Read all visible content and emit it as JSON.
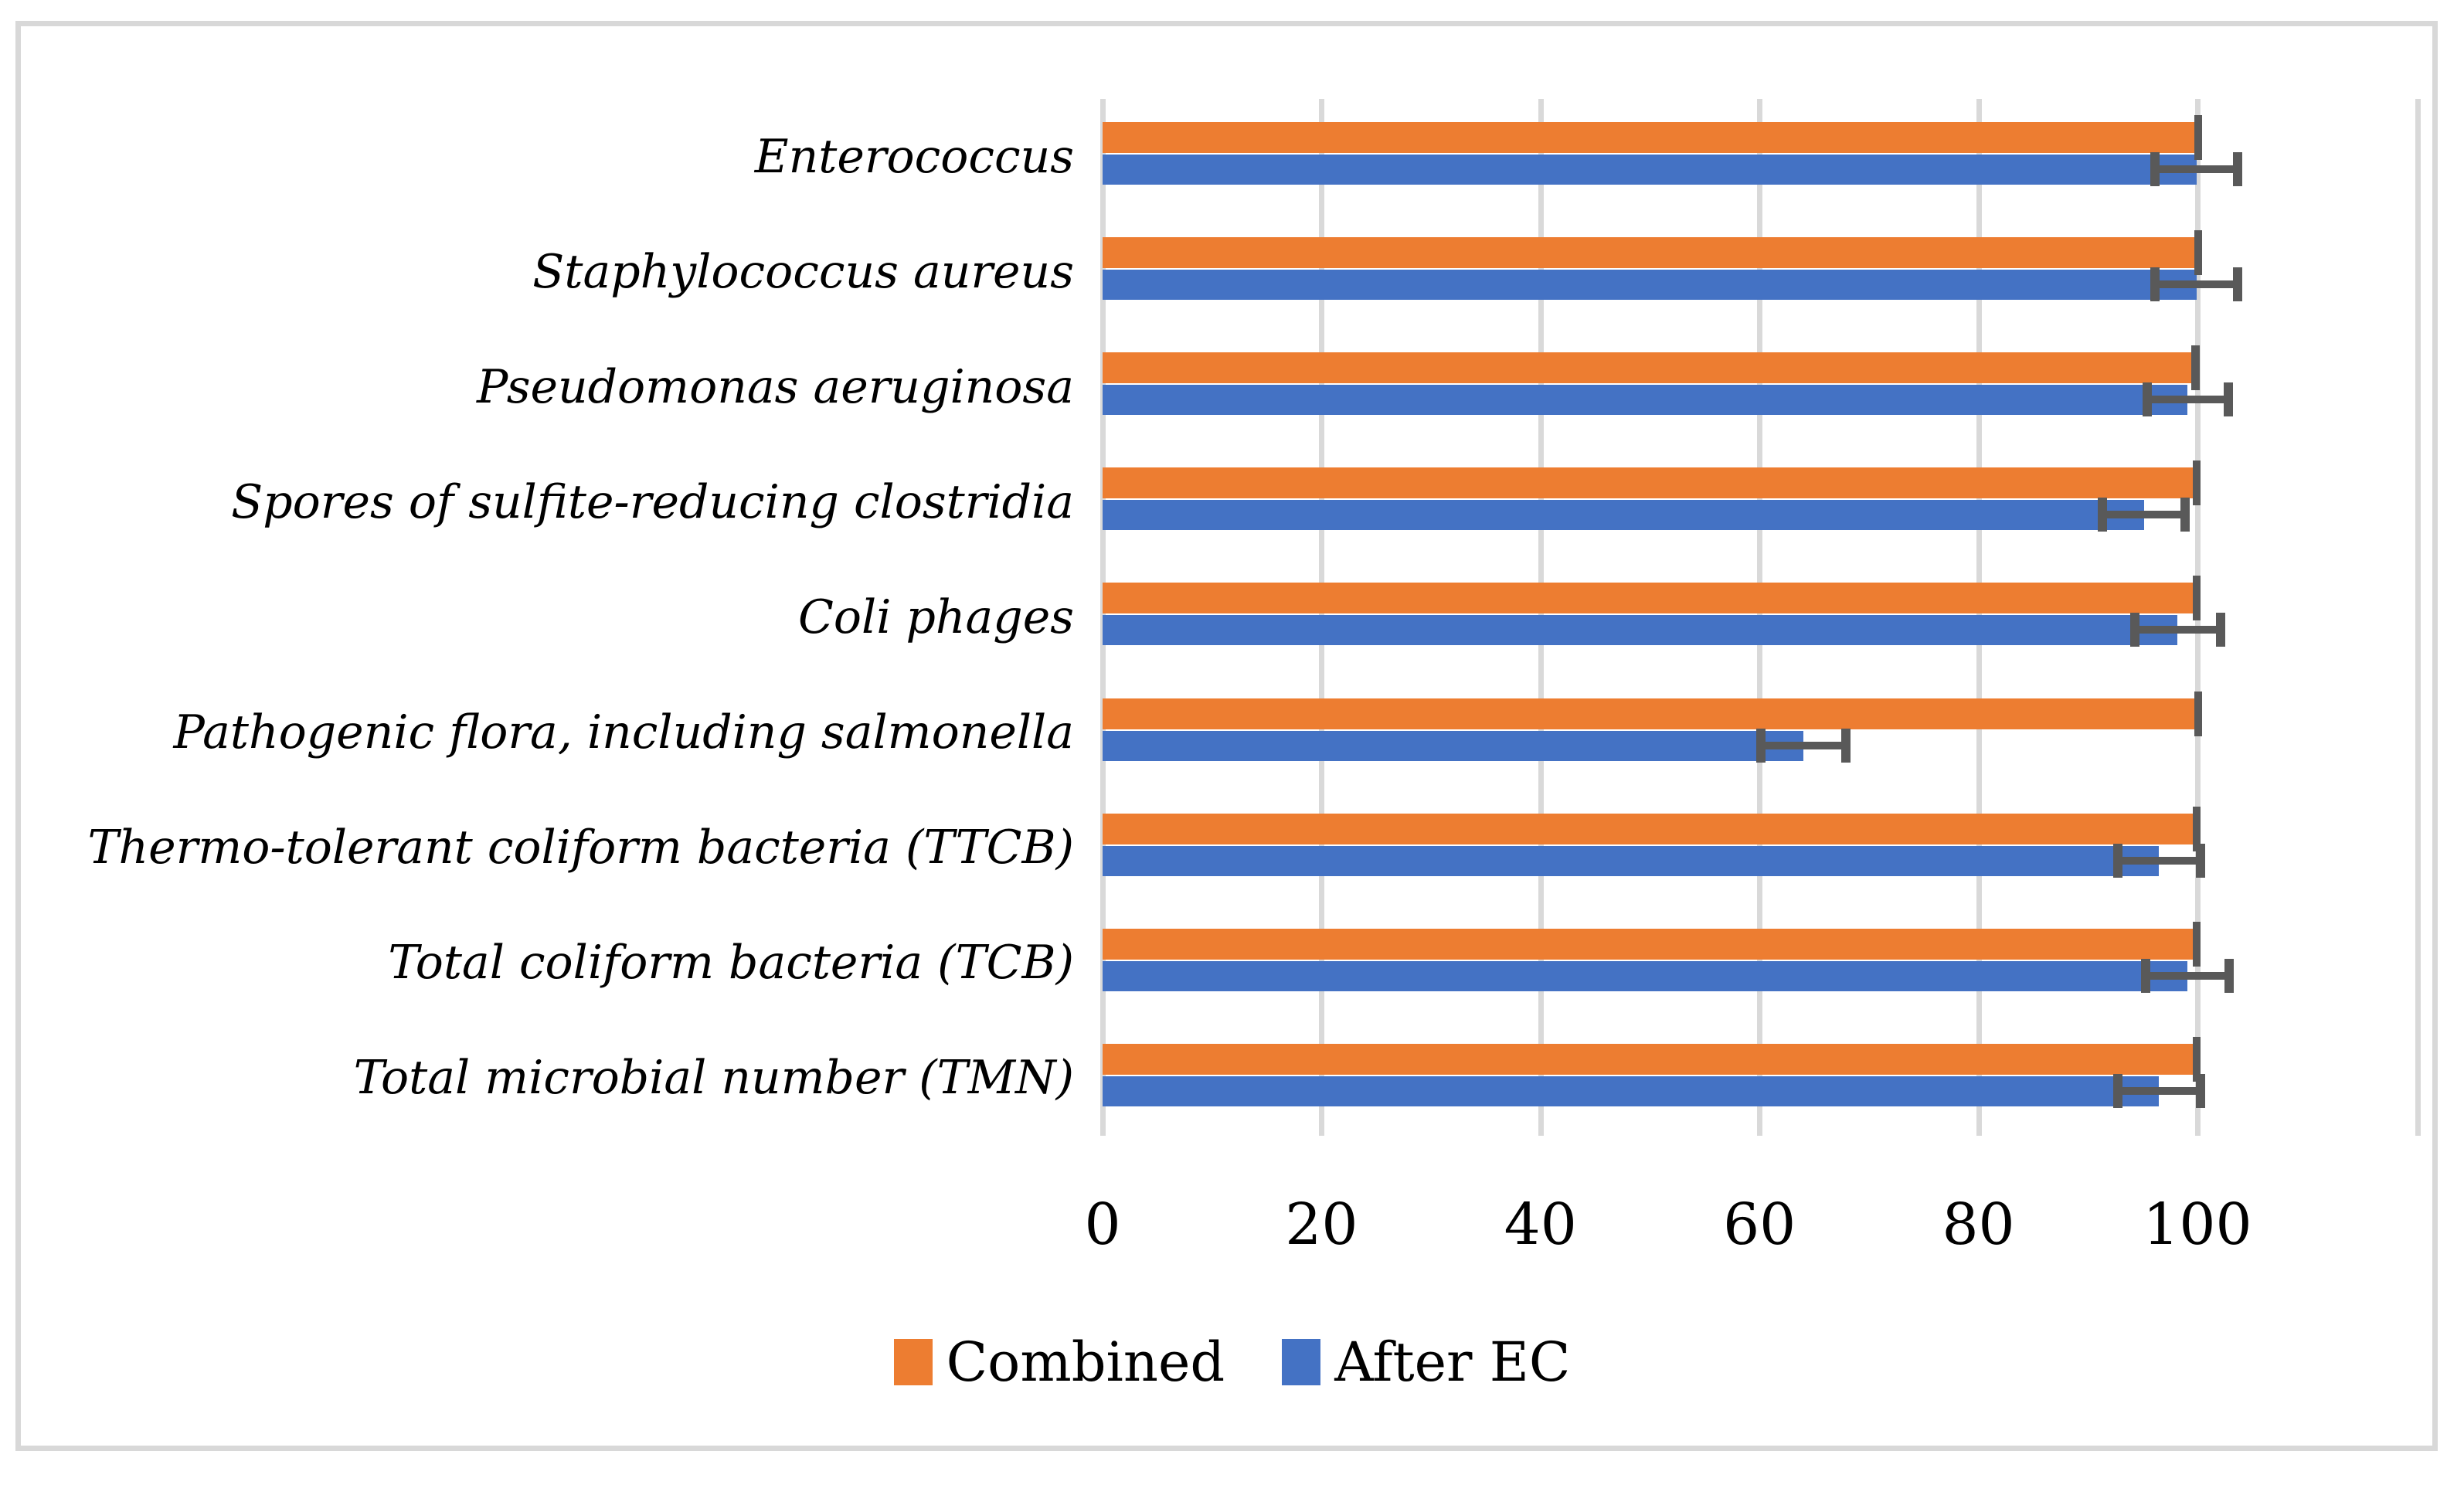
{
  "chart_data": {
    "type": "bar",
    "orientation": "horizontal-grouped",
    "title": "",
    "xlabel": "",
    "ylabel": "",
    "categories": [
      "Enterococcus",
      "Staphylococcus aureus",
      "Pseudomonas aeruginosa",
      "Spores of sulfite-reducing clostridia",
      "Coli phages",
      "Pathogenic flora, including salmonella",
      "Thermo-tolerant coliform bacteria (TTCB)",
      "Total coliform bacteria (TCB)",
      "Total microbial number (TMN)"
    ],
    "series": [
      {
        "name": "Combined",
        "color": "#ED7D31",
        "values": [
          99.9,
          99.9,
          99.7,
          99.8,
          99.8,
          99.9,
          99.8,
          99.8,
          99.8
        ],
        "error": [
          0.3,
          0.3,
          0.4,
          0.3,
          0.3,
          0.2,
          0.3,
          0.3,
          0.3
        ]
      },
      {
        "name": "After EC",
        "color": "#4472C4",
        "values": [
          99.9,
          99.9,
          99.1,
          95.1,
          98.2,
          64.0,
          96.5,
          99.1,
          96.5
        ],
        "error": [
          3.8,
          3.8,
          3.7,
          3.8,
          3.9,
          3.9,
          3.8,
          3.8,
          3.8
        ]
      }
    ],
    "x_ticks": [
      "0",
      "20",
      "40",
      "60",
      "80",
      "100"
    ],
    "x_major_unit": 20,
    "xlim": [
      0,
      120.4
    ],
    "grid": "vertical-major-on",
    "gridline_color": "#D9D9D9",
    "error_bar_color": "#595959",
    "frame_border_color": "#D8D8D8",
    "background_color": "#FFFFFF",
    "legend_position": "bottom-center"
  }
}
